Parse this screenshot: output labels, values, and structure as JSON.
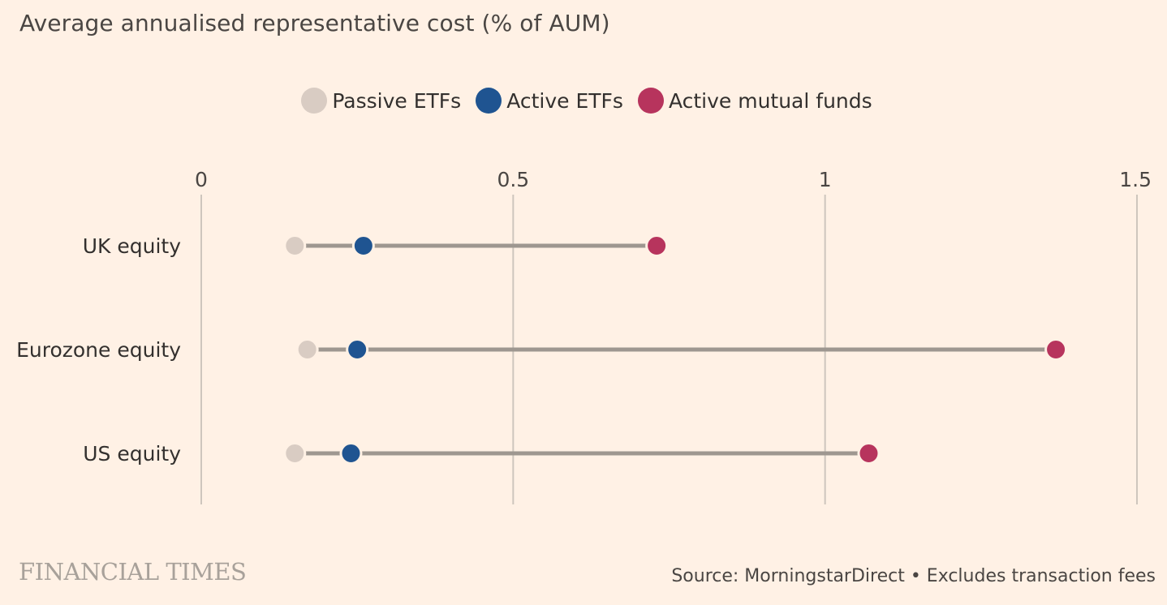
{
  "chart_data": {
    "type": "dot-range",
    "title": "Average annualised representative cost (% of AUM)",
    "xlim": [
      0,
      1.5
    ],
    "xticks": [
      0,
      0.5,
      1,
      1.5
    ],
    "xtick_labels": [
      "0",
      "0.5",
      "1",
      "1.5"
    ],
    "grid": true,
    "legend_position": "top-center",
    "series": [
      {
        "name": "Passive ETFs",
        "color": "#D9CCC3",
        "values": [
          0.15,
          0.17,
          0.15
        ]
      },
      {
        "name": "Active ETFs",
        "color": "#1F5491",
        "values": [
          0.26,
          0.25,
          0.24
        ]
      },
      {
        "name": "Active mutual funds",
        "color": "#B7345D",
        "values": [
          0.73,
          1.37,
          1.07
        ]
      }
    ],
    "categories": [
      "UK equity",
      "Eurozone equity",
      "US equity"
    ]
  },
  "colors": {
    "background": "#FFF1E5",
    "gridline": "#CEC6BD",
    "connector": "#9E9790"
  },
  "footer": {
    "brand": "FINANCIAL TIMES",
    "source": "Source: MorningstarDirect • Excludes transaction fees"
  }
}
